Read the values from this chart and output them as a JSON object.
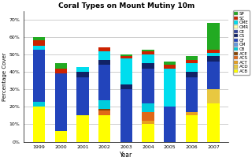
{
  "title": "Coral Types on Mount Mutiny 10m",
  "xlabel": "Year",
  "ylabel": "Percentage Cover",
  "years": [
    "1999",
    "2000",
    "2001",
    "2002",
    "2003",
    "2004",
    "2005",
    "2006",
    "2007"
  ],
  "categories": [
    "ACB",
    "ACD",
    "ACT",
    "ACS",
    "ACE",
    "CB",
    "CM",
    "CF",
    "CS",
    "CE",
    "CMR",
    "CME",
    "SC",
    "SP"
  ],
  "colors": {
    "ACB": "#ffff00",
    "ACD": "#e8c840",
    "ACT": "#e8a020",
    "ACS": "#e06818",
    "ACE": "#884400",
    "CB": "#00ccdd",
    "CM": "#6699dd",
    "CF": "#2244bb",
    "CS": "#112266",
    "CE": "#334499",
    "CMR": "#ffffaa",
    "CME": "#00ddee",
    "SC": "#cc2200",
    "SP": "#22aa22"
  },
  "data": {
    "ACB": [
      20,
      6,
      15,
      15,
      0,
      10,
      0,
      15,
      22
    ],
    "ACD": [
      0,
      0,
      0,
      0,
      0,
      0,
      0,
      0,
      8
    ],
    "ACT": [
      0,
      0,
      0,
      0,
      0,
      2,
      0,
      2,
      0
    ],
    "ACS": [
      0,
      0,
      0,
      3,
      0,
      5,
      0,
      0,
      0
    ],
    "ACE": [
      0,
      0,
      0,
      1,
      0,
      0,
      0,
      0,
      0
    ],
    "CB": [
      3,
      0,
      0,
      5,
      0,
      5,
      0,
      0,
      0
    ],
    "CM": [
      0,
      0,
      0,
      0,
      0,
      0,
      0,
      0,
      0
    ],
    "CF": [
      30,
      33,
      22,
      20,
      30,
      20,
      20,
      20,
      16
    ],
    "CS": [
      0,
      0,
      3,
      3,
      3,
      3,
      0,
      3,
      3
    ],
    "CE": [
      0,
      0,
      0,
      0,
      0,
      0,
      0,
      0,
      0
    ],
    "CMR": [
      0,
      0,
      0,
      0,
      0,
      0,
      0,
      0,
      0
    ],
    "CME": [
      2,
      0,
      3,
      5,
      15,
      5,
      22,
      5,
      2
    ],
    "SC": [
      3,
      3,
      0,
      2,
      1,
      2,
      2,
      2,
      2
    ],
    "SP": [
      2,
      3,
      0,
      0,
      1,
      1,
      2,
      2,
      15
    ]
  },
  "ylim": [
    0,
    75
  ],
  "yticks": [
    0,
    10,
    20,
    30,
    40,
    50,
    60,
    70
  ],
  "ytick_labels": [
    "0%",
    "10%",
    "20%",
    "30%",
    "40%",
    "50%",
    "60%",
    "70%"
  ],
  "figsize": [
    3.2,
    2.04
  ],
  "dpi": 100
}
